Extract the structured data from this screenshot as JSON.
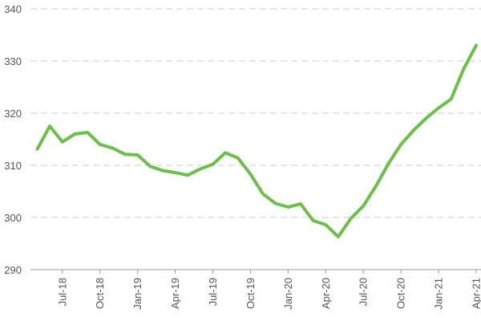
{
  "chart_data": {
    "type": "line",
    "title": "",
    "xlabel": "",
    "ylabel": "",
    "ylim": [
      290,
      340
    ],
    "yticks": [
      290,
      300,
      310,
      320,
      330,
      340
    ],
    "ytick_labels": [
      "290",
      "300",
      "310",
      "320",
      "330",
      "340"
    ],
    "xtick_labels": [
      "Jul-18",
      "Oct-18",
      "Jan-19",
      "Apr-19",
      "Jul-19",
      "Oct-19",
      "Jan-20",
      "Apr-20",
      "Jul-20",
      "Oct-20",
      "Jan-21",
      "Apr-21"
    ],
    "x": [
      "May-18",
      "Jun-18",
      "Jul-18",
      "Aug-18",
      "Sep-18",
      "Oct-18",
      "Nov-18",
      "Dec-18",
      "Jan-19",
      "Feb-19",
      "Mar-19",
      "Apr-19",
      "May-19",
      "Jun-19",
      "Jul-19",
      "Aug-19",
      "Sep-19",
      "Oct-19",
      "Nov-19",
      "Dec-19",
      "Jan-20",
      "Feb-20",
      "Mar-20",
      "Apr-20",
      "May-20",
      "Jun-20",
      "Jul-20",
      "Aug-20",
      "Sep-20",
      "Oct-20",
      "Nov-20",
      "Dec-20",
      "Jan-21",
      "Feb-21",
      "Mar-21",
      "Apr-21"
    ],
    "series": [
      {
        "color": "#6cc04a",
        "values": [
          313.1,
          317.5,
          314.5,
          316.0,
          316.3,
          314.0,
          313.3,
          312.1,
          312.0,
          309.8,
          309.0,
          308.6,
          308.1,
          309.3,
          310.2,
          312.4,
          311.4,
          308.3,
          304.5,
          302.7,
          302.0,
          302.6,
          299.4,
          298.6,
          296.3,
          299.8,
          302.2,
          306.0,
          310.3,
          314.0,
          316.7,
          319.0,
          321.0,
          322.7,
          328.5,
          333.0
        ]
      }
    ],
    "grid": true,
    "gridline_color": "#cccccc",
    "legend": "none"
  }
}
